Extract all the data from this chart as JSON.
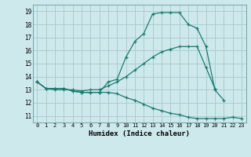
{
  "title": "",
  "xlabel": "Humidex (Indice chaleur)",
  "background_color": "#cee9ec",
  "grid_color": "#aacdd2",
  "line_color": "#1e7a70",
  "xlim": [
    -0.5,
    23.5
  ],
  "ylim": [
    10.5,
    19.5
  ],
  "xticks": [
    0,
    1,
    2,
    3,
    4,
    5,
    6,
    7,
    8,
    9,
    10,
    11,
    12,
    13,
    14,
    15,
    16,
    17,
    18,
    19,
    20,
    21,
    22,
    23
  ],
  "yticks": [
    11,
    12,
    13,
    14,
    15,
    16,
    17,
    18,
    19
  ],
  "line1_x": [
    0,
    1,
    2,
    3,
    4,
    5,
    6,
    7,
    8,
    9,
    10,
    11,
    12,
    13,
    14,
    15,
    16,
    17,
    18,
    19,
    20,
    21,
    22,
    23
  ],
  "line1_y": [
    13.6,
    13.1,
    13.1,
    13.1,
    12.9,
    12.8,
    12.8,
    12.8,
    13.6,
    13.8,
    15.5,
    16.7,
    17.3,
    18.8,
    18.9,
    18.9,
    18.9,
    18.0,
    17.7,
    16.3,
    13.0,
    12.2,
    null,
    null
  ],
  "line2_x": [
    0,
    1,
    2,
    3,
    4,
    5,
    6,
    7,
    8,
    9,
    10,
    11,
    12,
    13,
    14,
    15,
    16,
    17,
    18,
    19,
    20,
    21,
    22,
    23
  ],
  "line2_y": [
    13.6,
    13.1,
    13.0,
    13.0,
    13.0,
    12.9,
    13.0,
    13.0,
    13.3,
    13.6,
    14.0,
    14.5,
    15.0,
    15.5,
    15.9,
    16.1,
    16.3,
    16.3,
    16.3,
    14.7,
    13.1,
    null,
    null,
    null
  ],
  "line3_x": [
    0,
    1,
    2,
    3,
    4,
    5,
    6,
    7,
    8,
    9,
    10,
    11,
    12,
    13,
    14,
    15,
    16,
    17,
    18,
    19,
    20,
    21,
    22,
    23
  ],
  "line3_y": [
    13.6,
    13.1,
    13.1,
    13.1,
    12.9,
    12.8,
    12.8,
    12.8,
    12.8,
    12.7,
    12.4,
    12.2,
    11.9,
    11.6,
    11.4,
    11.2,
    11.1,
    10.9,
    10.8,
    10.8,
    10.8,
    10.8,
    10.9,
    10.8
  ]
}
